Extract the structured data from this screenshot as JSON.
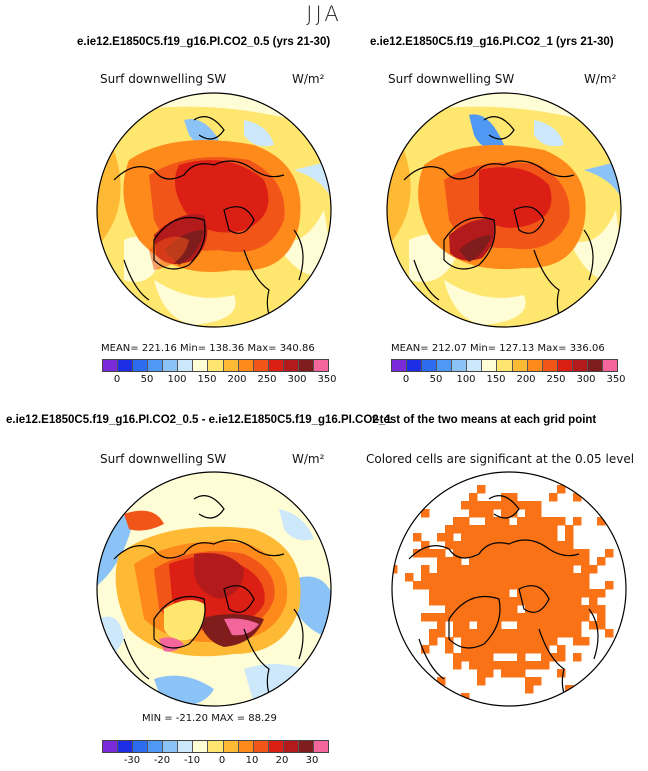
{
  "season": "JJA",
  "colors": {
    "sw_scale": [
      "#7b2ad9",
      "#1e2ee6",
      "#2d6cf0",
      "#4f98f3",
      "#8cc3f7",
      "#cde8fb",
      "#fffdd6",
      "#ffe66e",
      "#ffba35",
      "#ff8a1c",
      "#f25518",
      "#dc1f14",
      "#b31a1c",
      "#7f1c1c",
      "#f2669c"
    ],
    "diff_scale": [
      "#7b2ad9",
      "#1e2ee6",
      "#2d6cf0",
      "#4f98f3",
      "#8cc3f7",
      "#cde8fb",
      "#fffdd6",
      "#ffe66e",
      "#ffba35",
      "#ff8a1c",
      "#f25518",
      "#dc1f14",
      "#b31a1c",
      "#7f1c1c",
      "#f2669c"
    ],
    "significance": "#f97316"
  },
  "panels": {
    "top_left": {
      "title": "e.ie12.E1850C5.f19_g16.PI.CO2_0.5 (yrs 21-30)",
      "label": "Surf downwelling SW",
      "units": "W/m²",
      "stats": "MEAN= 221.16   Min= 138.36   Max= 340.86",
      "ticks": [
        "0",
        "50",
        "100",
        "150",
        "200",
        "250",
        "300",
        "350"
      ]
    },
    "top_right": {
      "title": "e.ie12.E1850C5.f19_g16.PI.CO2_1 (yrs 21-30)",
      "label": "Surf downwelling SW",
      "units": "W/m²",
      "stats": "MEAN= 212.07   Min= 127.13   Max= 336.06",
      "ticks": [
        "0",
        "50",
        "100",
        "150",
        "200",
        "250",
        "300",
        "350"
      ]
    },
    "bottom_left": {
      "title": "e.ie12.E1850C5.f19_g16.PI.CO2_0.5 - e.ie12.E1850C5.f19_g16.PI.CO2_1",
      "label": "Surf downwelling SW",
      "units": "W/m²",
      "stats": "MIN = -21.20  MAX =  88.29",
      "ticks": [
        "-30",
        "-20",
        "-10",
        "0",
        "10",
        "20",
        "30"
      ]
    },
    "bottom_right": {
      "title": "t-test of the two means at each grid point",
      "label": "Colored cells are significant at the 0.05 level"
    }
  },
  "chart_data": [
    {
      "type": "heatmap",
      "projection": "polar stereographic (north pole)",
      "title": "e.ie12.E1850C5.f19_g16.PI.CO2_0.5 (yrs 21-30)",
      "variable": "Surf downwelling SW",
      "units": "W/m²",
      "mean": 221.16,
      "min": 138.36,
      "max": 340.86,
      "colorbar_ticks": [
        0,
        50,
        100,
        150,
        200,
        250,
        300,
        350
      ]
    },
    {
      "type": "heatmap",
      "projection": "polar stereographic (north pole)",
      "title": "e.ie12.E1850C5.f19_g16.PI.CO2_1 (yrs 21-30)",
      "variable": "Surf downwelling SW",
      "units": "W/m²",
      "mean": 212.07,
      "min": 127.13,
      "max": 336.06,
      "colorbar_ticks": [
        0,
        50,
        100,
        150,
        200,
        250,
        300,
        350
      ]
    },
    {
      "type": "heatmap",
      "projection": "polar stereographic (north pole)",
      "title": "e.ie12.E1850C5.f19_g16.PI.CO2_0.5 - e.ie12.E1850C5.f19_g16.PI.CO2_1",
      "variable": "Surf downwelling SW",
      "units": "W/m²",
      "min": -21.2,
      "max": 88.29,
      "colorbar_ticks": [
        -30,
        -20,
        -10,
        0,
        10,
        20,
        30
      ]
    },
    {
      "type": "heatmap",
      "projection": "polar stereographic (north pole)",
      "title": "t-test of the two means at each grid point",
      "variable": "Colored cells are significant at the 0.05 level"
    }
  ]
}
